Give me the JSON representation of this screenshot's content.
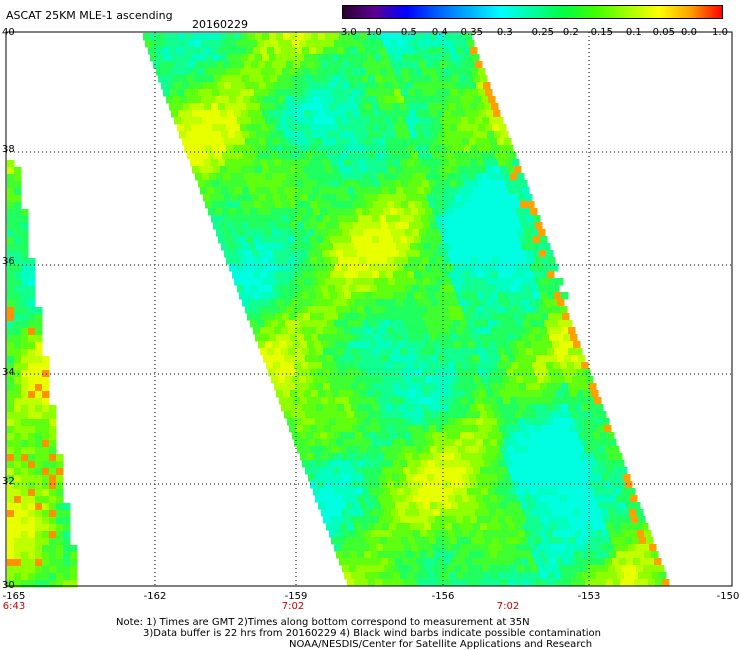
{
  "title": "ASCAT 25KM MLE-1 ascending",
  "date": "20160229",
  "colorbar": {
    "tick_labels": [
      "-3.0",
      "-1.0",
      "-0.5",
      "-0.4",
      "-0.35",
      "-0.3",
      "-0.25",
      "-0.2",
      "-0.15",
      "-0.1",
      "-0.05",
      "0.0",
      "1.0"
    ],
    "colors": [
      "#2a0030",
      "#5b0090",
      "#0000ff",
      "#0060ff",
      "#00b0ff",
      "#00ffff",
      "#00ffa0",
      "#00ff40",
      "#40ff00",
      "#a0ff00",
      "#ffff00",
      "#ffa000",
      "#ff0000"
    ]
  },
  "lat_labels": [
    "40",
    "38",
    "36",
    "34",
    "32",
    "30"
  ],
  "lon_labels": [
    "-165",
    "-162",
    "-159",
    "-156",
    "-153",
    "-150"
  ],
  "time_labels": [
    "6:43",
    "7:02",
    "7:02"
  ],
  "notes": [
    "Note: 1) Times are GMT 2)Times along bottom correspond to measurement at 35N",
    "3)Data buffer is 22 hrs from 20160229 4) Black wind barbs indicate possible contamination",
    "NOAA/NESDIS/Center for Satellite Applications and Research"
  ]
}
